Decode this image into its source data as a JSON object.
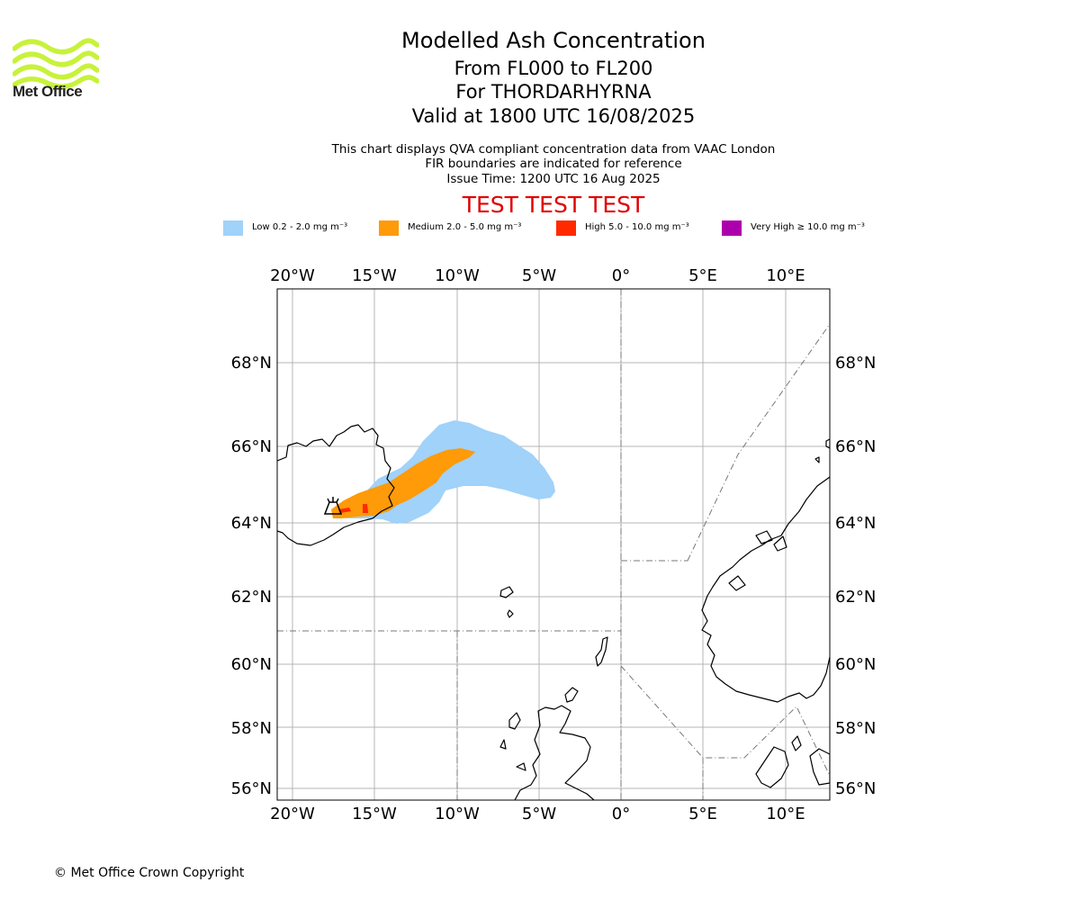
{
  "brand": {
    "logo_text": "Met Office",
    "logo_color": "#c8f23a"
  },
  "title": {
    "main": "Modelled Ash Concentration",
    "levels": "From FL000 to FL200",
    "volcano": "For THORDARHYRNA",
    "valid": "Valid at 1800 UTC 16/08/2025"
  },
  "notes": {
    "line1": "This chart displays QVA compliant concentration data from VAAC London",
    "line2": "FIR boundaries are indicated for reference",
    "line3": "Issue Time: 1200 UTC 16 Aug 2025"
  },
  "banner": "TEST TEST TEST",
  "legend": [
    {
      "label": "Low 0.2 - 2.0 mg m⁻³",
      "color": "#a0d2fa"
    },
    {
      "label": "Medium 2.0 - 5.0 mg m⁻³",
      "color": "#ff9a08"
    },
    {
      "label": "High 5.0 - 10.0 mg m⁻³",
      "color": "#ff2a00"
    },
    {
      "label": "Very High  ≥  10.0 mg m⁻³",
      "color": "#ad00ad"
    }
  ],
  "map": {
    "lon_ticks": [
      "20°W",
      "15°W",
      "10°W",
      "5°W",
      "0°",
      "5°E",
      "10°E"
    ],
    "lat_ticks": [
      "68°N",
      "66°N",
      "64°N",
      "62°N",
      "60°N",
      "58°N",
      "56°N"
    ]
  },
  "copyright": "© Met Office Crown Copyright"
}
